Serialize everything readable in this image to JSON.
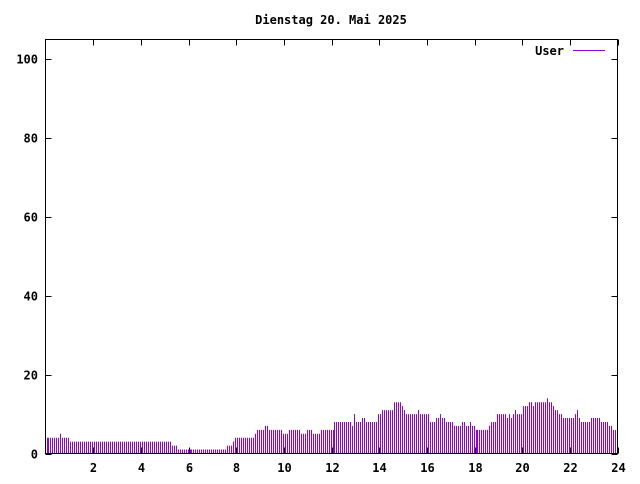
{
  "chart_data": {
    "type": "bar",
    "title": "Dienstag 20. Mai 2025",
    "xlabel": "",
    "ylabel": "",
    "xlim": [
      0,
      24
    ],
    "ylim": [
      0,
      105
    ],
    "xticks": [
      2,
      4,
      6,
      8,
      10,
      12,
      14,
      16,
      18,
      20,
      22,
      24
    ],
    "yticks": [
      0,
      20,
      40,
      60,
      80,
      100
    ],
    "grid": false,
    "legend_position": "top-right",
    "series": [
      {
        "name": "User",
        "color": "#9400d3",
        "values": [
          4,
          4,
          4,
          4,
          4,
          4,
          4,
          5,
          4,
          4,
          4,
          4,
          3,
          3,
          3,
          3,
          3,
          3,
          3,
          3,
          3,
          3,
          3,
          3,
          3,
          3,
          3,
          3,
          3,
          3,
          3,
          3,
          3,
          3,
          3,
          3,
          3,
          3,
          3,
          3,
          3,
          3,
          3,
          3,
          3,
          3,
          3,
          3,
          3,
          3,
          3,
          3,
          3,
          3,
          3,
          3,
          3,
          3,
          3,
          3,
          3,
          3,
          3,
          2,
          2,
          2,
          1,
          1,
          1,
          1,
          1,
          1,
          1,
          1,
          1,
          1,
          1,
          1,
          1,
          1,
          1,
          1,
          1,
          1,
          1,
          1,
          1,
          1,
          1,
          1,
          1,
          2,
          2,
          2,
          3,
          4,
          4,
          4,
          4,
          4,
          4,
          4,
          4,
          4,
          4,
          5,
          6,
          6,
          6,
          6,
          7,
          7,
          6,
          6,
          6,
          6,
          6,
          6,
          6,
          5,
          5,
          5,
          6,
          6,
          6,
          6,
          6,
          6,
          5,
          5,
          5,
          6,
          6,
          6,
          5,
          5,
          5,
          5,
          6,
          6,
          6,
          6,
          6,
          6,
          6,
          8,
          8,
          8,
          8,
          8,
          8,
          8,
          8,
          8,
          7,
          10,
          8,
          8,
          8,
          9,
          9,
          8,
          8,
          8,
          8,
          8,
          8,
          10,
          10,
          11,
          11,
          11,
          11,
          11,
          11,
          13,
          13,
          13,
          13,
          12,
          11,
          10,
          10,
          10,
          10,
          10,
          10,
          11,
          10,
          10,
          10,
          10,
          10,
          8,
          8,
          8,
          9,
          9,
          10,
          9,
          9,
          8,
          8,
          8,
          8,
          7,
          7,
          7,
          7,
          8,
          8,
          7,
          7,
          8,
          7,
          7,
          6,
          6,
          6,
          6,
          6,
          6,
          6,
          7,
          8,
          8,
          8,
          10,
          10,
          10,
          10,
          10,
          9,
          10,
          9,
          10,
          11,
          10,
          10,
          10,
          12,
          12,
          12,
          13,
          13,
          12,
          13,
          13,
          13,
          13,
          13,
          13,
          14,
          13,
          13,
          12,
          11,
          11,
          10,
          10,
          9,
          9,
          9,
          9,
          9,
          9,
          10,
          11,
          9,
          8,
          8,
          8,
          8,
          8,
          9,
          9,
          9,
          9,
          9,
          8,
          8,
          8,
          8,
          7,
          7,
          6,
          6
        ]
      }
    ]
  }
}
